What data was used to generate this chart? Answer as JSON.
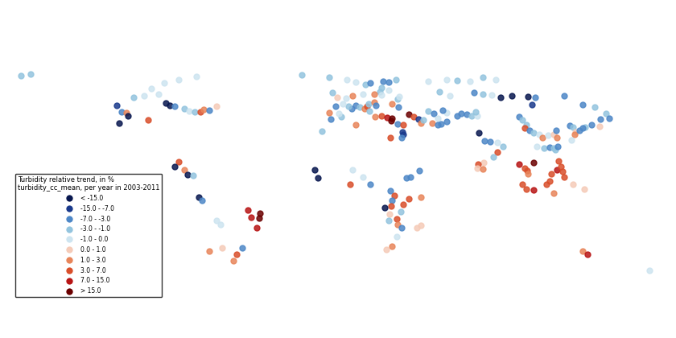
{
  "title": "Turbidity relative trend, in %",
  "subtitle": "turbidity_cc_mean, per year in 2003-2011",
  "legend_categories": [
    {
      "label": "< -15.0",
      "color": "#08174f",
      "mid": -20.0
    },
    {
      "label": "-15.0 - -7.0",
      "color": "#1a3a8c",
      "mid": -11.0
    },
    {
      "label": "-7.0 - -3.0",
      "color": "#4d87c7",
      "mid": -5.0
    },
    {
      "label": "-3.0 - -1.0",
      "color": "#93c4de",
      "mid": -2.0
    },
    {
      "label": "-1.0 - 0.0",
      "color": "#cde4f0",
      "mid": -0.5
    },
    {
      "label": "0.0 - 1.0",
      "color": "#f5cbb8",
      "mid": 0.5
    },
    {
      "label": "1.0 - 3.0",
      "color": "#e8855a",
      "mid": 2.0
    },
    {
      "label": "3.0 - 7.0",
      "color": "#d94f2b",
      "mid": 5.0
    },
    {
      "label": "7.0 - 15.0",
      "color": "#b81515",
      "mid": 11.0
    },
    {
      "label": "> 15.0",
      "color": "#6b0000",
      "mid": 20.0
    }
  ],
  "points": [
    {
      "lon": -122.4,
      "lat": 47.5,
      "val": -11.0
    },
    {
      "lon": -119.5,
      "lat": 44.0,
      "val": -5.0
    },
    {
      "lon": -117.0,
      "lat": 43.5,
      "val": 2.0
    },
    {
      "lon": -116.0,
      "lat": 42.0,
      "val": -20.0
    },
    {
      "lon": -121.0,
      "lat": 38.0,
      "val": -20.0
    },
    {
      "lon": -105.0,
      "lat": 39.5,
      "val": 5.0
    },
    {
      "lon": -95.0,
      "lat": 49.0,
      "val": -20.0
    },
    {
      "lon": -93.0,
      "lat": 47.5,
      "val": -20.0
    },
    {
      "lon": -90.0,
      "lat": 47.0,
      "val": -5.0
    },
    {
      "lon": -85.0,
      "lat": 46.0,
      "val": -2.0
    },
    {
      "lon": -82.0,
      "lat": 44.5,
      "val": -0.5
    },
    {
      "lon": -79.0,
      "lat": 44.0,
      "val": -2.0
    },
    {
      "lon": -76.0,
      "lat": 44.0,
      "val": 5.0
    },
    {
      "lon": -74.0,
      "lat": 45.5,
      "val": 2.0
    },
    {
      "lon": -71.0,
      "lat": 45.0,
      "val": -5.0
    },
    {
      "lon": -67.0,
      "lat": 47.0,
      "val": 0.5
    },
    {
      "lon": -113.0,
      "lat": 52.0,
      "val": -2.0
    },
    {
      "lon": -107.0,
      "lat": 53.0,
      "val": -0.5
    },
    {
      "lon": -99.0,
      "lat": 54.0,
      "val": -0.5
    },
    {
      "lon": -103.0,
      "lat": 57.0,
      "val": -0.5
    },
    {
      "lon": -96.0,
      "lat": 60.0,
      "val": -0.5
    },
    {
      "lon": -88.0,
      "lat": 62.0,
      "val": -0.5
    },
    {
      "lon": -78.0,
      "lat": 63.5,
      "val": -0.5
    },
    {
      "lon": -88.0,
      "lat": 16.5,
      "val": 5.0
    },
    {
      "lon": -85.0,
      "lat": 12.0,
      "val": 2.0
    },
    {
      "lon": -90.0,
      "lat": 14.0,
      "val": -20.0
    },
    {
      "lon": -83.0,
      "lat": 9.5,
      "val": -20.0
    },
    {
      "lon": -80.0,
      "lat": 9.0,
      "val": -2.0
    },
    {
      "lon": -77.0,
      "lat": -3.0,
      "val": -20.0
    },
    {
      "lon": -75.0,
      "lat": -5.0,
      "val": -5.0
    },
    {
      "lon": -67.0,
      "lat": -16.0,
      "val": -0.5
    },
    {
      "lon": -65.0,
      "lat": -18.0,
      "val": -0.5
    },
    {
      "lon": -50.0,
      "lat": -10.0,
      "val": 11.0
    },
    {
      "lon": -48.0,
      "lat": -14.0,
      "val": 11.0
    },
    {
      "lon": -43.0,
      "lat": -12.0,
      "val": 20.0
    },
    {
      "lon": -43.5,
      "lat": -14.5,
      "val": 20.0
    },
    {
      "lon": -45.0,
      "lat": -20.0,
      "val": 11.0
    },
    {
      "lon": -53.0,
      "lat": -31.0,
      "val": -5.0
    },
    {
      "lon": -56.0,
      "lat": -34.5,
      "val": 5.0
    },
    {
      "lon": -58.0,
      "lat": -38.0,
      "val": 2.0
    },
    {
      "lon": -64.0,
      "lat": -31.0,
      "val": 0.5
    },
    {
      "lon": -71.0,
      "lat": -33.0,
      "val": 2.0
    },
    {
      "lon": -20.0,
      "lat": 64.5,
      "val": -2.0
    },
    {
      "lon": -5.0,
      "lat": 63.0,
      "val": -2.0
    },
    {
      "lon": 5.0,
      "lat": 62.0,
      "val": -0.5
    },
    {
      "lon": 10.0,
      "lat": 60.5,
      "val": -0.5
    },
    {
      "lon": 15.0,
      "lat": 59.0,
      "val": -2.0
    },
    {
      "lon": 18.0,
      "lat": 60.0,
      "val": -5.0
    },
    {
      "lon": 25.0,
      "lat": 61.0,
      "val": -5.0
    },
    {
      "lon": 28.0,
      "lat": 60.5,
      "val": -5.0
    },
    {
      "lon": 32.0,
      "lat": 62.0,
      "val": -2.0
    },
    {
      "lon": 28.0,
      "lat": 56.0,
      "val": -0.5
    },
    {
      "lon": 24.0,
      "lat": 57.5,
      "val": -2.0
    },
    {
      "lon": 23.0,
      "lat": 55.0,
      "val": -2.0
    },
    {
      "lon": 20.0,
      "lat": 54.0,
      "val": 2.0
    },
    {
      "lon": 14.0,
      "lat": 54.0,
      "val": -0.5
    },
    {
      "lon": 8.0,
      "lat": 53.0,
      "val": 2.0
    },
    {
      "lon": 10.0,
      "lat": 47.5,
      "val": -5.0
    },
    {
      "lon": 7.5,
      "lat": 46.0,
      "val": -5.0
    },
    {
      "lon": 6.0,
      "lat": 47.0,
      "val": -2.0
    },
    {
      "lon": 12.0,
      "lat": 46.5,
      "val": -2.0
    },
    {
      "lon": 14.5,
      "lat": 46.0,
      "val": 2.0
    },
    {
      "lon": 16.0,
      "lat": 47.0,
      "val": 5.0
    },
    {
      "lon": 17.0,
      "lat": 48.5,
      "val": -2.0
    },
    {
      "lon": 20.0,
      "lat": 49.5,
      "val": 2.0
    },
    {
      "lon": 21.0,
      "lat": 47.5,
      "val": -5.0
    },
    {
      "lon": 17.5,
      "lat": 44.5,
      "val": -2.0
    },
    {
      "lon": 20.5,
      "lat": 41.5,
      "val": 2.0
    },
    {
      "lon": 24.0,
      "lat": 42.0,
      "val": 5.0
    },
    {
      "lon": 27.0,
      "lat": 41.0,
      "val": 11.0
    },
    {
      "lon": 30.0,
      "lat": 40.5,
      "val": 20.0
    },
    {
      "lon": 29.5,
      "lat": 39.0,
      "val": 20.0
    },
    {
      "lon": 33.0,
      "lat": 37.5,
      "val": -5.0
    },
    {
      "lon": 36.0,
      "lat": 37.0,
      "val": 5.0
    },
    {
      "lon": 35.5,
      "lat": 33.0,
      "val": -11.0
    },
    {
      "lon": 36.0,
      "lat": 31.5,
      "val": -11.0
    },
    {
      "lon": 35.0,
      "lat": 30.0,
      "val": -5.0
    },
    {
      "lon": 39.0,
      "lat": 42.5,
      "val": 20.0
    },
    {
      "lon": 42.0,
      "lat": 41.5,
      "val": 5.0
    },
    {
      "lon": 44.5,
      "lat": 40.0,
      "val": -11.0
    },
    {
      "lon": 46.0,
      "lat": 38.0,
      "val": 2.0
    },
    {
      "lon": 47.0,
      "lat": 39.5,
      "val": -2.0
    },
    {
      "lon": 50.0,
      "lat": 44.5,
      "val": -2.0
    },
    {
      "lon": 53.0,
      "lat": 43.0,
      "val": -5.0
    },
    {
      "lon": 60.0,
      "lat": 43.5,
      "val": -0.5
    },
    {
      "lon": 58.0,
      "lat": 45.0,
      "val": -5.0
    },
    {
      "lon": 55.0,
      "lat": 40.5,
      "val": -0.5
    },
    {
      "lon": 52.0,
      "lat": 38.0,
      "val": 2.0
    },
    {
      "lon": 55.0,
      "lat": 37.0,
      "val": -5.0
    },
    {
      "lon": 57.0,
      "lat": 37.5,
      "val": -5.0
    },
    {
      "lon": 60.0,
      "lat": 38.5,
      "val": -5.0
    },
    {
      "lon": 66.0,
      "lat": 42.0,
      "val": -5.0
    },
    {
      "lon": 68.0,
      "lat": 43.0,
      "val": -5.0
    },
    {
      "lon": 71.0,
      "lat": 42.5,
      "val": -5.0
    },
    {
      "lon": 74.0,
      "lat": 42.0,
      "val": -2.0
    },
    {
      "lon": 77.0,
      "lat": 42.0,
      "val": -0.5
    },
    {
      "lon": 76.0,
      "lat": 44.0,
      "val": -2.0
    },
    {
      "lon": 78.0,
      "lat": 32.5,
      "val": -20.0
    },
    {
      "lon": 81.0,
      "lat": 28.0,
      "val": -5.0
    },
    {
      "lon": 84.0,
      "lat": 27.5,
      "val": -5.0
    },
    {
      "lon": 88.0,
      "lat": 27.0,
      "val": -0.5
    },
    {
      "lon": 91.0,
      "lat": 25.0,
      "val": -2.0
    },
    {
      "lon": 88.0,
      "lat": 22.0,
      "val": 5.0
    },
    {
      "lon": 86.0,
      "lat": 19.0,
      "val": -2.0
    },
    {
      "lon": 80.5,
      "lat": 16.0,
      "val": 0.5
    },
    {
      "lon": 77.5,
      "lat": 15.0,
      "val": 5.0
    },
    {
      "lon": 77.0,
      "lat": 13.0,
      "val": 0.5
    },
    {
      "lon": 80.0,
      "lat": 12.5,
      "val": 2.0
    },
    {
      "lon": 100.0,
      "lat": 41.5,
      "val": -5.0
    },
    {
      "lon": 102.0,
      "lat": 39.5,
      "val": -2.0
    },
    {
      "lon": 104.0,
      "lat": 37.0,
      "val": -2.0
    },
    {
      "lon": 103.0,
      "lat": 35.0,
      "val": 5.0
    },
    {
      "lon": 106.0,
      "lat": 34.0,
      "val": -5.0
    },
    {
      "lon": 108.0,
      "lat": 32.5,
      "val": -2.0
    },
    {
      "lon": 111.0,
      "lat": 31.5,
      "val": -0.5
    },
    {
      "lon": 113.0,
      "lat": 30.0,
      "val": 2.0
    },
    {
      "lon": 116.0,
      "lat": 31.0,
      "val": -0.5
    },
    {
      "lon": 119.0,
      "lat": 31.5,
      "val": 0.5
    },
    {
      "lon": 121.0,
      "lat": 30.0,
      "val": 2.0
    },
    {
      "lon": 110.0,
      "lat": 25.0,
      "val": -0.5
    },
    {
      "lon": 114.0,
      "lat": 24.0,
      "val": -2.0
    },
    {
      "lon": 117.0,
      "lat": 24.5,
      "val": -5.0
    },
    {
      "lon": 119.0,
      "lat": 24.0,
      "val": -2.0
    },
    {
      "lon": 120.0,
      "lat": 23.0,
      "val": -2.0
    },
    {
      "lon": 121.5,
      "lat": 25.0,
      "val": -5.0
    },
    {
      "lon": 120.5,
      "lat": 34.0,
      "val": -5.0
    },
    {
      "lon": 128.0,
      "lat": 36.5,
      "val": -5.0
    },
    {
      "lon": 130.0,
      "lat": 35.5,
      "val": -2.0
    },
    {
      "lon": 131.0,
      "lat": 33.0,
      "val": 0.5
    },
    {
      "lon": 130.5,
      "lat": 31.5,
      "val": 2.0
    },
    {
      "lon": 140.0,
      "lat": 37.0,
      "val": -5.0
    },
    {
      "lon": 136.5,
      "lat": 35.5,
      "val": -2.0
    },
    {
      "lon": 135.0,
      "lat": 35.0,
      "val": -5.0
    },
    {
      "lon": 133.5,
      "lat": 34.0,
      "val": -5.0
    },
    {
      "lon": 129.0,
      "lat": 28.5,
      "val": -0.5
    },
    {
      "lon": 100.0,
      "lat": 15.0,
      "val": 11.0
    },
    {
      "lon": 103.0,
      "lat": 13.0,
      "val": 5.0
    },
    {
      "lon": 104.5,
      "lat": 11.5,
      "val": 5.0
    },
    {
      "lon": 105.0,
      "lat": 10.0,
      "val": 2.0
    },
    {
      "lon": 108.0,
      "lat": 16.0,
      "val": 20.0
    },
    {
      "lon": 102.0,
      "lat": 4.0,
      "val": 5.0
    },
    {
      "lon": 104.0,
      "lat": 1.5,
      "val": 5.0
    },
    {
      "lon": 108.0,
      "lat": 1.0,
      "val": 11.0
    },
    {
      "lon": 115.0,
      "lat": 4.0,
      "val": 5.0
    },
    {
      "lon": 117.0,
      "lat": 6.0,
      "val": 5.0
    },
    {
      "lon": 118.0,
      "lat": 10.0,
      "val": 5.0
    },
    {
      "lon": 121.0,
      "lat": 12.0,
      "val": 11.0
    },
    {
      "lon": 123.0,
      "lat": 14.0,
      "val": 5.0
    },
    {
      "lon": 124.0,
      "lat": 11.0,
      "val": 5.0
    },
    {
      "lon": 122.0,
      "lat": 17.0,
      "val": 5.0
    },
    {
      "lon": 125.0,
      "lat": 8.0,
      "val": 5.0
    },
    {
      "lon": 119.0,
      "lat": -1.0,
      "val": 2.0
    },
    {
      "lon": 130.0,
      "lat": 4.0,
      "val": 0.5
    },
    {
      "lon": 136.0,
      "lat": 1.5,
      "val": 0.5
    },
    {
      "lon": 145.0,
      "lat": 40.0,
      "val": -5.0
    },
    {
      "lon": 148.0,
      "lat": 43.0,
      "val": -2.0
    },
    {
      "lon": 150.0,
      "lat": 40.5,
      "val": -5.0
    },
    {
      "lon": 144.5,
      "lat": 36.0,
      "val": 0.5
    },
    {
      "lon": 125.0,
      "lat": 53.0,
      "val": -5.0
    },
    {
      "lon": 135.0,
      "lat": 48.0,
      "val": -5.0
    },
    {
      "lon": 142.0,
      "lat": 46.5,
      "val": -2.0
    },
    {
      "lon": 56.0,
      "lat": 55.0,
      "val": -2.0
    },
    {
      "lon": 62.0,
      "lat": 53.0,
      "val": -0.5
    },
    {
      "lon": 75.0,
      "lat": 54.5,
      "val": -5.0
    },
    {
      "lon": 80.0,
      "lat": 54.0,
      "val": -2.0
    },
    {
      "lon": 85.0,
      "lat": 53.5,
      "val": -0.5
    },
    {
      "lon": 90.0,
      "lat": 52.0,
      "val": -20.0
    },
    {
      "lon": 96.0,
      "lat": 53.0,
      "val": -20.0
    },
    {
      "lon": 105.0,
      "lat": 52.5,
      "val": -20.0
    },
    {
      "lon": 109.0,
      "lat": 52.0,
      "val": -5.0
    },
    {
      "lon": 107.0,
      "lat": 48.0,
      "val": -11.0
    },
    {
      "lon": 50.0,
      "lat": 61.0,
      "val": -0.5
    },
    {
      "lon": 60.0,
      "lat": 62.0,
      "val": -0.5
    },
    {
      "lon": 66.0,
      "lat": 61.5,
      "val": -2.0
    },
    {
      "lon": 73.0,
      "lat": 61.0,
      "val": -0.5
    },
    {
      "lon": 80.0,
      "lat": 63.0,
      "val": -2.0
    },
    {
      "lon": 87.0,
      "lat": 62.0,
      "val": -0.5
    },
    {
      "lon": 30.0,
      "lat": 48.5,
      "val": 2.0
    },
    {
      "lon": 33.5,
      "lat": 46.5,
      "val": -5.0
    },
    {
      "lon": 33.0,
      "lat": 51.0,
      "val": -2.0
    },
    {
      "lon": 34.0,
      "lat": 52.5,
      "val": -0.5
    },
    {
      "lon": 24.0,
      "lat": 53.5,
      "val": -0.5
    },
    {
      "lon": -13.0,
      "lat": 12.0,
      "val": -20.0
    },
    {
      "lon": -11.0,
      "lat": 7.5,
      "val": -20.0
    },
    {
      "lon": 8.0,
      "lat": 12.0,
      "val": -0.5
    },
    {
      "lon": 14.0,
      "lat": 8.0,
      "val": -0.5
    },
    {
      "lon": 6.5,
      "lat": 4.0,
      "val": 5.0
    },
    {
      "lon": 18.0,
      "lat": 4.0,
      "val": -5.0
    },
    {
      "lon": 29.0,
      "lat": 0.5,
      "val": -5.0
    },
    {
      "lon": 31.0,
      "lat": -2.0,
      "val": 5.0
    },
    {
      "lon": 30.0,
      "lat": -5.0,
      "val": -5.0
    },
    {
      "lon": 29.5,
      "lat": -8.0,
      "val": 5.0
    },
    {
      "lon": 26.0,
      "lat": -9.0,
      "val": -20.0
    },
    {
      "lon": 28.5,
      "lat": -12.5,
      "val": 0.5
    },
    {
      "lon": 28.0,
      "lat": -16.0,
      "val": -2.0
    },
    {
      "lon": 32.5,
      "lat": -15.0,
      "val": 5.0
    },
    {
      "lon": 33.0,
      "lat": -18.0,
      "val": 2.0
    },
    {
      "lon": 34.5,
      "lat": -11.0,
      "val": -2.0
    },
    {
      "lon": 36.0,
      "lat": -7.0,
      "val": 5.0
    },
    {
      "lon": 39.0,
      "lat": -4.0,
      "val": 5.0
    },
    {
      "lon": 32.5,
      "lat": -25.0,
      "val": -0.5
    },
    {
      "lon": 30.0,
      "lat": -30.0,
      "val": 2.0
    },
    {
      "lon": 26.5,
      "lat": -32.0,
      "val": 0.5
    },
    {
      "lon": 35.0,
      "lat": -20.0,
      "val": -5.0
    },
    {
      "lon": 46.0,
      "lat": -18.5,
      "val": 0.5
    },
    {
      "lon": 43.5,
      "lat": -20.0,
      "val": 0.5
    },
    {
      "lon": 135.0,
      "lat": -33.0,
      "val": 2.0
    },
    {
      "lon": 138.0,
      "lat": -34.5,
      "val": 11.0
    },
    {
      "lon": 172.0,
      "lat": -43.5,
      "val": -0.5
    },
    {
      "lon": -175.0,
      "lat": 64.0,
      "val": -2.0
    },
    {
      "lon": -170.0,
      "lat": 65.0,
      "val": -2.0
    },
    {
      "lon": -5.0,
      "lat": 43.5,
      "val": 2.0
    },
    {
      "lon": -4.0,
      "lat": 40.0,
      "val": -5.0
    },
    {
      "lon": 2.0,
      "lat": 41.5,
      "val": -2.0
    },
    {
      "lon": 0.5,
      "lat": 43.0,
      "val": -0.5
    },
    {
      "lon": -1.5,
      "lat": 47.0,
      "val": -5.0
    },
    {
      "lon": 2.5,
      "lat": 48.5,
      "val": -0.5
    },
    {
      "lon": 4.5,
      "lat": 51.5,
      "val": -0.5
    },
    {
      "lon": -3.0,
      "lat": 54.5,
      "val": -2.0
    },
    {
      "lon": -0.5,
      "lat": 52.0,
      "val": 0.5
    },
    {
      "lon": 45.0,
      "lat": 11.5,
      "val": -5.0
    },
    {
      "lon": 40.0,
      "lat": 8.0,
      "val": -5.0
    },
    {
      "lon": 38.0,
      "lat": 7.5,
      "val": -5.0
    },
    {
      "lon": 46.0,
      "lat": -3.0,
      "val": 2.0
    },
    {
      "lon": -9.0,
      "lat": 33.5,
      "val": -2.0
    },
    {
      "lon": 10.0,
      "lat": 37.0,
      "val": 2.0
    },
    {
      "lon": 29.0,
      "lat": 30.0,
      "val": 5.0
    }
  ]
}
